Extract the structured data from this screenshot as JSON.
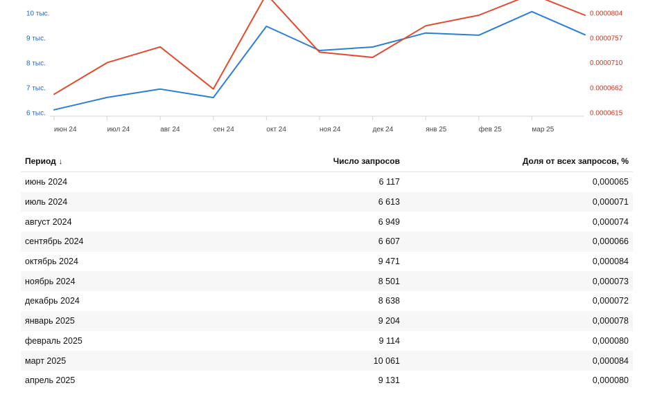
{
  "chart_data": {
    "type": "line",
    "categories": [
      "июн 24",
      "июл 24",
      "авг 24",
      "сен 24",
      "окт 24",
      "ноя 24",
      "дек 24",
      "янв 25",
      "фев 25",
      "мар 25",
      "апр 25"
    ],
    "x_tick_labels": [
      "июн 24",
      "июл 24",
      "авг 24",
      "сен 24",
      "окт 24",
      "ноя 24",
      "дек 24",
      "янв 25",
      "фев 25",
      "мар 25"
    ],
    "y_left_ticks": [
      "10 тыс.",
      "9 тыс.",
      "8 тыс.",
      "7 тыс.",
      "6 тыс."
    ],
    "y_left_tick_values": [
      10000,
      9000,
      8000,
      7000,
      6000
    ],
    "y_right_ticks": [
      "0.0000804",
      "0.0000757",
      "0.0000710",
      "0.0000662",
      "0.0000615"
    ],
    "y_right_tick_values": [
      8.04e-05,
      7.57e-05,
      7.1e-05,
      6.62e-05,
      6.15e-05
    ],
    "series": [
      {
        "axis": "left",
        "color": "#2a7fd6",
        "values": [
          6117,
          6613,
          6949,
          6607,
          9471,
          8501,
          8638,
          9204,
          9114,
          10061,
          9131
        ]
      },
      {
        "axis": "right",
        "color": "#e4492b",
        "values": [
          6.5e-05,
          7.1e-05,
          7.4e-05,
          6.6e-05,
          8.4e-05,
          7.3e-05,
          7.2e-05,
          7.8e-05,
          8e-05,
          8.4e-05,
          8e-05
        ]
      }
    ],
    "grid": false
  },
  "table": {
    "headers": {
      "period": "Период",
      "count": "Число запросов",
      "share": "Доля от всех запросов, %"
    },
    "sort_arrow": "↓",
    "rows": [
      {
        "period": "июнь 2024",
        "count": "6 117",
        "share": "0,000065"
      },
      {
        "period": "июль 2024",
        "count": "6 613",
        "share": "0,000071"
      },
      {
        "period": "август 2024",
        "count": "6 949",
        "share": "0,000074"
      },
      {
        "period": "сентябрь 2024",
        "count": "6 607",
        "share": "0,000066"
      },
      {
        "period": "октябрь 2024",
        "count": "9 471",
        "share": "0,000084"
      },
      {
        "period": "ноябрь 2024",
        "count": "8 501",
        "share": "0,000073"
      },
      {
        "period": "декабрь 2024",
        "count": "8 638",
        "share": "0,000072"
      },
      {
        "period": "январь 2025",
        "count": "9 204",
        "share": "0,000078"
      },
      {
        "period": "февраль 2025",
        "count": "9 114",
        "share": "0,000080"
      },
      {
        "period": "март 2025",
        "count": "10 061",
        "share": "0,000084"
      },
      {
        "period": "апрель 2025",
        "count": "9 131",
        "share": "0,000080"
      }
    ]
  }
}
